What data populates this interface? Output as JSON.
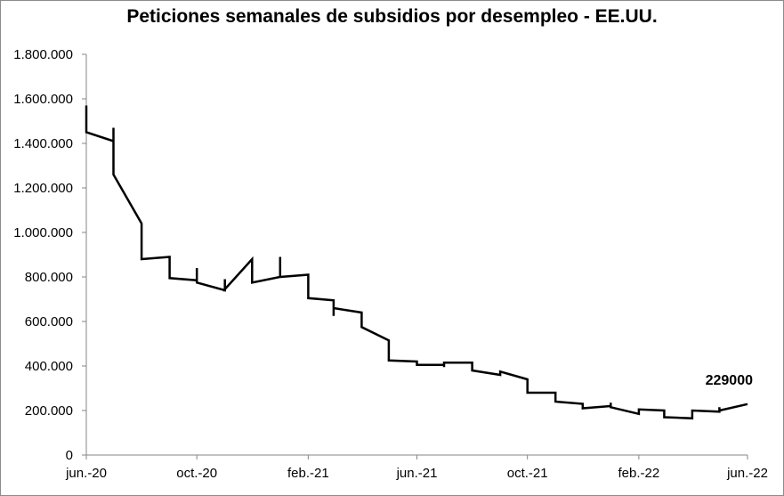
{
  "chart_data": {
    "type": "line",
    "title": "Peticiones semanales de subsidios por desempleo - EE.UU.",
    "xlabel": "",
    "ylabel": "",
    "ylim": [
      0,
      1800000
    ],
    "yticks": [
      0,
      200000,
      400000,
      600000,
      800000,
      1000000,
      1200000,
      1400000,
      1600000,
      1800000
    ],
    "ytick_labels": [
      "0",
      "200.000",
      "400.000",
      "600.000",
      "800.000",
      "1.000.000",
      "1.200.000",
      "1.400.000",
      "1.600.000",
      "1.800.000"
    ],
    "xlim": [
      "2020-06-01",
      "2022-06-01"
    ],
    "xticks": [
      "2020-06-01",
      "2020-10-01",
      "2021-02-01",
      "2021-06-01",
      "2021-10-01",
      "2022-02-01",
      "2022-06-01"
    ],
    "xtick_labels": [
      "jun.-20",
      "oct.-20",
      "feb.-21",
      "jun.-21",
      "oct.-21",
      "feb.-22",
      "jun.-22"
    ],
    "grid": false,
    "color": "#000000",
    "series": [
      {
        "values": [
          [
            "2020-06-01",
            1570000
          ],
          [
            "2020-06-01",
            1450000
          ],
          [
            "2020-07-01",
            1410000
          ],
          [
            "2020-07-01",
            1470000
          ],
          [
            "2020-07-01",
            1260000
          ],
          [
            "2020-08-01",
            1040000
          ],
          [
            "2020-08-01",
            880000
          ],
          [
            "2020-09-01",
            890000
          ],
          [
            "2020-09-01",
            795000
          ],
          [
            "2020-10-01",
            785000
          ],
          [
            "2020-10-01",
            840000
          ],
          [
            "2020-10-01",
            775000
          ],
          [
            "2020-11-01",
            740000
          ],
          [
            "2020-11-01",
            790000
          ],
          [
            "2020-11-01",
            745000
          ],
          [
            "2020-12-01",
            880000
          ],
          [
            "2020-12-01",
            775000
          ],
          [
            "2021-01-01",
            800000
          ],
          [
            "2021-01-01",
            890000
          ],
          [
            "2021-01-01",
            800000
          ],
          [
            "2021-02-01",
            810000
          ],
          [
            "2021-02-01",
            705000
          ],
          [
            "2021-03-01",
            695000
          ],
          [
            "2021-03-01",
            625000
          ],
          [
            "2021-03-01",
            660000
          ],
          [
            "2021-04-01",
            640000
          ],
          [
            "2021-04-01",
            575000
          ],
          [
            "2021-05-01",
            515000
          ],
          [
            "2021-05-01",
            425000
          ],
          [
            "2021-06-01",
            420000
          ],
          [
            "2021-06-01",
            405000
          ],
          [
            "2021-07-01",
            405000
          ],
          [
            "2021-07-01",
            395000
          ],
          [
            "2021-07-01",
            415000
          ],
          [
            "2021-08-01",
            415000
          ],
          [
            "2021-08-01",
            380000
          ],
          [
            "2021-09-01",
            360000
          ],
          [
            "2021-09-01",
            375000
          ],
          [
            "2021-10-01",
            340000
          ],
          [
            "2021-10-01",
            280000
          ],
          [
            "2021-11-01",
            280000
          ],
          [
            "2021-11-01",
            240000
          ],
          [
            "2021-12-01",
            230000
          ],
          [
            "2021-12-01",
            210000
          ],
          [
            "2022-01-01",
            220000
          ],
          [
            "2022-01-01",
            235000
          ],
          [
            "2022-01-01",
            215000
          ],
          [
            "2022-02-01",
            185000
          ],
          [
            "2022-02-01",
            205000
          ],
          [
            "2022-03-01",
            200000
          ],
          [
            "2022-03-01",
            170000
          ],
          [
            "2022-04-01",
            165000
          ],
          [
            "2022-04-01",
            200000
          ],
          [
            "2022-05-01",
            195000
          ],
          [
            "2022-05-01",
            215000
          ],
          [
            "2022-05-01",
            200000
          ],
          [
            "2022-06-01",
            229000
          ]
        ]
      }
    ],
    "annotations": [
      {
        "x": "2022-06-01",
        "y": 229000,
        "text": "229000"
      }
    ]
  }
}
